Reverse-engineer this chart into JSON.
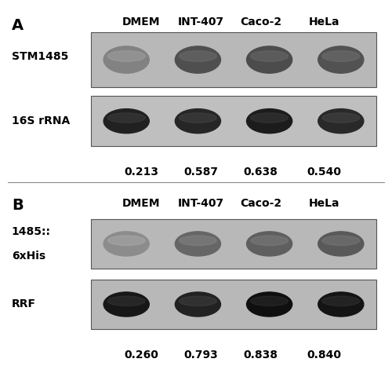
{
  "panel_A": {
    "label": "A",
    "column_headers": [
      "DMEM",
      "INT-407",
      "Caco-2",
      "HeLa"
    ],
    "row_labels": [
      "STM1485",
      "16S rRNA"
    ],
    "densitometry_values": [
      "0.213",
      "0.587",
      "0.638",
      "0.540"
    ],
    "gel1_band_intensities": [
      0.35,
      0.85,
      0.88,
      0.82
    ],
    "gel2_band_intensities": [
      0.8,
      0.75,
      0.85,
      0.72
    ],
    "gel1_bg_gray": 0.72,
    "gel2_bg_gray": 0.75,
    "gel1_band_gray": 0.25,
    "gel2_band_gray": 0.05
  },
  "panel_B": {
    "label": "B",
    "column_headers": [
      "DMEM",
      "INT-407",
      "Caco-2",
      "HeLa"
    ],
    "row_labels": [
      "1485::\n6xHis",
      "RRF"
    ],
    "densitometry_values": [
      "0.260",
      "0.793",
      "0.838",
      "0.840"
    ],
    "gel1_band_intensities": [
      0.38,
      0.75,
      0.82,
      0.88
    ],
    "gel2_band_intensities": [
      0.82,
      0.72,
      0.9,
      0.85
    ],
    "gel1_bg_gray": 0.72,
    "gel2_bg_gray": 0.72,
    "gel1_band_gray": 0.3,
    "gel2_band_gray": 0.02
  },
  "figure_bg": "#ffffff",
  "gel_border_color": "#888888",
  "text_color": "#000000",
  "header_fontsize": 10,
  "label_fontsize": 10,
  "value_fontsize": 10,
  "panel_label_fontsize": 14
}
